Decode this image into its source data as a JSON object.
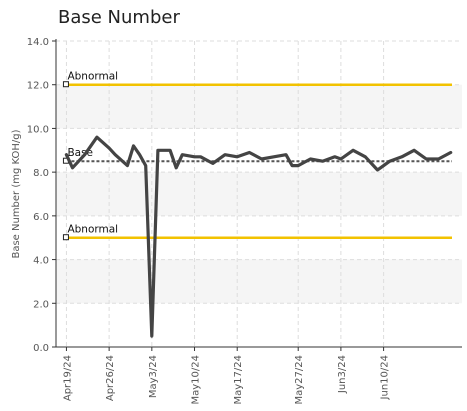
{
  "chart_data": {
    "type": "line",
    "title": "Base Number",
    "xlabel": "",
    "ylabel": "Base Number (mg KOH/g)",
    "ylim": [
      0,
      14
    ],
    "yticks": [
      0,
      2,
      4,
      6,
      8,
      10,
      12,
      14
    ],
    "ytick_labels": [
      "0.0",
      "2.0",
      "4.0",
      "6.0",
      "8.0",
      "10.0",
      "12.0",
      "14.0"
    ],
    "xlim": [
      "2024-04-19",
      "2024-06-21"
    ],
    "xticks": [
      "2024-04-19",
      "2024-04-26",
      "2024-05-03",
      "2024-05-10",
      "2024-05-17",
      "2024-05-27",
      "2024-06-03",
      "2024-06-10"
    ],
    "xtick_labels": [
      "Apr19/24",
      "Apr26/24",
      "May3/24",
      "May10/24",
      "May17/24",
      "May27/24",
      "Jun3/24",
      "Jun10/24"
    ],
    "grid": true,
    "reference_lines": [
      {
        "label": "Abnormal",
        "value": 12.0,
        "color": "#f2c200",
        "style": "solid"
      },
      {
        "label": "Base",
        "value": 8.5,
        "color": "#555555",
        "style": "dashed"
      },
      {
        "label": "Abnormal",
        "value": 5.0,
        "color": "#f2c200",
        "style": "solid"
      }
    ],
    "series": [
      {
        "color": "#444444",
        "x": [
          "2024-04-19",
          "2024-04-20",
          "2024-04-22",
          "2024-04-24",
          "2024-04-26",
          "2024-04-27",
          "2024-04-29",
          "2024-04-30",
          "2024-05-01",
          "2024-05-02",
          "2024-05-03",
          "2024-05-04",
          "2024-05-05",
          "2024-05-06",
          "2024-05-07",
          "2024-05-08",
          "2024-05-10",
          "2024-05-11",
          "2024-05-13",
          "2024-05-15",
          "2024-05-17",
          "2024-05-19",
          "2024-05-21",
          "2024-05-23",
          "2024-05-25",
          "2024-05-26",
          "2024-05-27",
          "2024-05-29",
          "2024-05-31",
          "2024-06-02",
          "2024-06-03",
          "2024-06-05",
          "2024-06-07",
          "2024-06-09",
          "2024-06-11",
          "2024-06-13",
          "2024-06-15",
          "2024-06-17",
          "2024-06-19",
          "2024-06-21"
        ],
        "y": [
          8.8,
          8.2,
          8.8,
          9.6,
          9.1,
          8.8,
          8.3,
          9.2,
          8.8,
          8.3,
          0.5,
          9.0,
          9.0,
          9.0,
          8.2,
          8.8,
          8.7,
          8.7,
          8.4,
          8.8,
          8.7,
          8.9,
          8.6,
          8.7,
          8.8,
          8.3,
          8.3,
          8.6,
          8.5,
          8.7,
          8.6,
          9.0,
          8.7,
          8.1,
          8.5,
          8.7,
          9.0,
          8.6,
          8.6,
          8.9
        ]
      }
    ]
  }
}
